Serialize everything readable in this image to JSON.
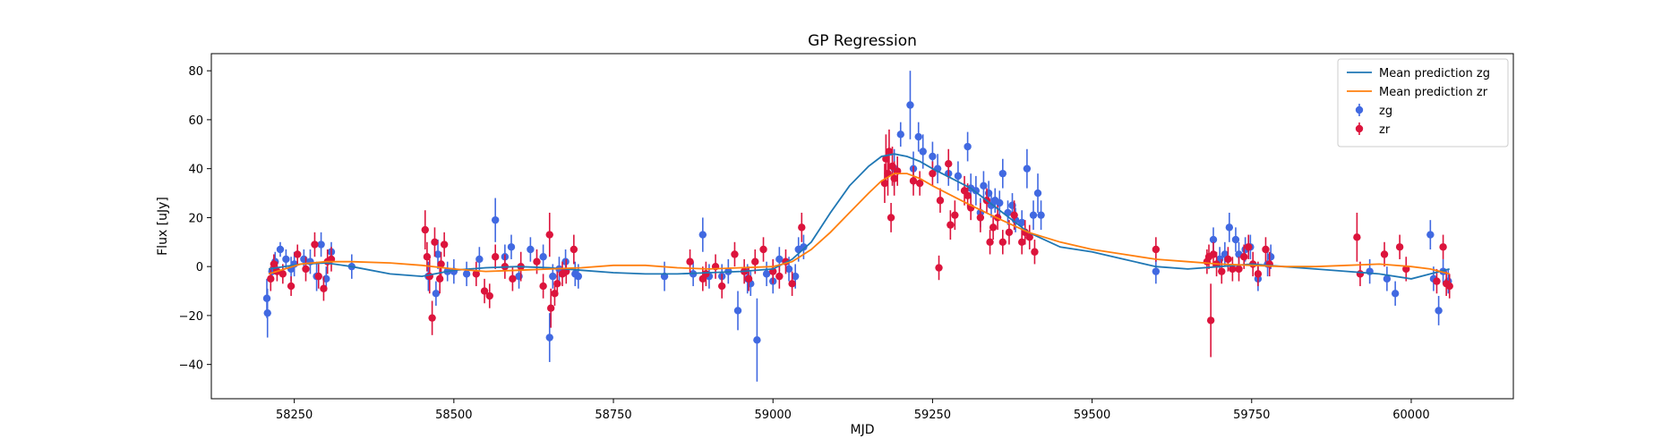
{
  "chart_data": {
    "type": "scatter",
    "title": "GP Regression",
    "xlabel": "MJD",
    "ylabel": "Flux [uJy]",
    "xlim": [
      58120,
      60160
    ],
    "ylim": [
      -54,
      87
    ],
    "x_ticks": [
      58250,
      58500,
      58750,
      59000,
      59250,
      59500,
      59750,
      60000
    ],
    "y_ticks": [
      -40,
      -20,
      0,
      20,
      40,
      60,
      80
    ],
    "grid": false,
    "legend_position": "top-right",
    "colors": {
      "zg": "#4169e1",
      "zr": "#dc143c",
      "mean_zg": "#1f77b4",
      "mean_zr": "#ff7f0e"
    },
    "series": [
      {
        "name": "Mean prediction zg",
        "kind": "line",
        "color": "#1f77b4",
        "x": [
          58210,
          58260,
          58300,
          58340,
          58400,
          58450,
          58500,
          58550,
          58600,
          58650,
          58700,
          58750,
          58800,
          58850,
          58900,
          58950,
          59000,
          59030,
          59060,
          59090,
          59120,
          59150,
          59170,
          59190,
          59210,
          59230,
          59250,
          59280,
          59310,
          59350,
          59400,
          59450,
          59500,
          59550,
          59600,
          59650,
          59700,
          59750,
          59800,
          59850,
          59900,
          59950,
          60000,
          60030,
          60060
        ],
        "y": [
          -1,
          1,
          1.5,
          0,
          -3,
          -4,
          -1.5,
          -0.5,
          0,
          -0.5,
          -1.5,
          -2.5,
          -3,
          -3,
          -2.5,
          -2,
          -1,
          3,
          10,
          22,
          33,
          41,
          45,
          46,
          45,
          43,
          40,
          36,
          32,
          24,
          14,
          8,
          6,
          3,
          0,
          -1,
          0,
          1,
          0,
          -1,
          -2,
          -3,
          -5,
          -3,
          -1
        ]
      },
      {
        "name": "Mean prediction zr",
        "kind": "line",
        "color": "#ff7f0e",
        "x": [
          58210,
          58260,
          58300,
          58340,
          58400,
          58450,
          58500,
          58550,
          58600,
          58650,
          58700,
          58750,
          58800,
          58850,
          58900,
          58950,
          59000,
          59030,
          59060,
          59090,
          59120,
          59150,
          59170,
          59190,
          59210,
          59230,
          59250,
          59280,
          59310,
          59350,
          59400,
          59450,
          59500,
          59550,
          59600,
          59650,
          59700,
          59750,
          59800,
          59850,
          59900,
          59950,
          60000,
          60030,
          60060
        ],
        "y": [
          -3,
          1,
          2,
          2,
          1.5,
          0.5,
          -1,
          -2,
          -1.5,
          -1,
          -0.5,
          0.5,
          0.5,
          -0.5,
          -1,
          -0.5,
          0,
          2,
          7,
          14,
          22,
          30,
          35,
          38,
          38,
          36,
          33,
          29,
          25,
          20,
          14,
          10,
          7,
          5,
          3,
          2,
          1,
          0.5,
          0,
          0,
          0.5,
          1,
          0,
          -1,
          -3
        ]
      },
      {
        "name": "zg",
        "kind": "errorbar",
        "color": "#4169e1",
        "points": [
          [
            58207,
            -13,
            8
          ],
          [
            58208,
            -19,
            10
          ],
          [
            58215,
            -2,
            4
          ],
          [
            58220,
            2,
            4
          ],
          [
            58228,
            7,
            3
          ],
          [
            58237,
            3,
            4
          ],
          [
            58245,
            -1,
            5
          ],
          [
            58250,
            1,
            5
          ],
          [
            58265,
            3,
            4
          ],
          [
            58275,
            2,
            5
          ],
          [
            58285,
            -4,
            6
          ],
          [
            58292,
            9,
            5
          ],
          [
            58300,
            -5,
            5
          ],
          [
            58308,
            6,
            4
          ],
          [
            58340,
            0,
            5
          ],
          [
            58460,
            -4,
            6
          ],
          [
            58472,
            -11,
            5
          ],
          [
            58475,
            5,
            6
          ],
          [
            58490,
            -2,
            4
          ],
          [
            58500,
            -2,
            5
          ],
          [
            58520,
            -3,
            5
          ],
          [
            58540,
            3,
            5
          ],
          [
            58565,
            19,
            9
          ],
          [
            58580,
            4,
            5
          ],
          [
            58590,
            8,
            5
          ],
          [
            58602,
            -4,
            5
          ],
          [
            58620,
            7,
            5
          ],
          [
            58640,
            4,
            5
          ],
          [
            58650,
            -29,
            10
          ],
          [
            58655,
            -4,
            5
          ],
          [
            58665,
            -1,
            5
          ],
          [
            58675,
            2,
            5
          ],
          [
            58690,
            -3,
            5
          ],
          [
            58695,
            -4,
            5
          ],
          [
            58830,
            -4,
            6
          ],
          [
            58875,
            -3,
            5
          ],
          [
            58890,
            13,
            7
          ],
          [
            58900,
            -4,
            5
          ],
          [
            58920,
            -4,
            5
          ],
          [
            58930,
            -2,
            5
          ],
          [
            58945,
            -18,
            8
          ],
          [
            58960,
            -5,
            6
          ],
          [
            58965,
            -7,
            5
          ],
          [
            58975,
            -30,
            17
          ],
          [
            58990,
            -3,
            5
          ],
          [
            59000,
            -6,
            5
          ],
          [
            59010,
            3,
            5
          ],
          [
            59025,
            -1,
            5
          ],
          [
            59035,
            -4,
            5
          ],
          [
            59040,
            7,
            5
          ],
          [
            59048,
            8,
            5
          ],
          [
            59190,
            40,
            8
          ],
          [
            59200,
            54,
            5
          ],
          [
            59215,
            66,
            14
          ],
          [
            59220,
            40,
            7
          ],
          [
            59228,
            53,
            6
          ],
          [
            59235,
            47,
            7
          ],
          [
            59250,
            45,
            6
          ],
          [
            59258,
            40,
            6
          ],
          [
            59275,
            38,
            5
          ],
          [
            59290,
            37,
            6
          ],
          [
            59305,
            49,
            6
          ],
          [
            59310,
            32,
            6
          ],
          [
            59318,
            31,
            6
          ],
          [
            59325,
            22,
            6
          ],
          [
            59330,
            33,
            6
          ],
          [
            59338,
            30,
            5
          ],
          [
            59342,
            25,
            5
          ],
          [
            59348,
            27,
            5
          ],
          [
            59355,
            26,
            5
          ],
          [
            59360,
            38,
            6
          ],
          [
            59368,
            22,
            5
          ],
          [
            59375,
            25,
            5
          ],
          [
            59380,
            19,
            5
          ],
          [
            59390,
            18,
            5
          ],
          [
            59398,
            40,
            8
          ],
          [
            59408,
            21,
            6
          ],
          [
            59415,
            30,
            8
          ],
          [
            59420,
            21,
            6
          ],
          [
            59600,
            -2,
            5
          ],
          [
            59690,
            11,
            5
          ],
          [
            59700,
            3,
            5
          ],
          [
            59708,
            5,
            5
          ],
          [
            59715,
            16,
            6
          ],
          [
            59725,
            11,
            5
          ],
          [
            59730,
            5,
            5
          ],
          [
            59740,
            7,
            5
          ],
          [
            59748,
            8,
            5
          ],
          [
            59760,
            -5,
            5
          ],
          [
            59775,
            1,
            5
          ],
          [
            59780,
            4,
            5
          ],
          [
            59935,
            -2,
            5
          ],
          [
            59962,
            -5,
            5
          ],
          [
            59975,
            -11,
            5
          ],
          [
            60030,
            13,
            6
          ],
          [
            60035,
            -5,
            5
          ],
          [
            60043,
            -18,
            6
          ],
          [
            60050,
            -2,
            5
          ],
          [
            60058,
            -6,
            5
          ]
        ]
      },
      {
        "name": "zr",
        "kind": "errorbar",
        "color": "#dc143c",
        "points": [
          [
            58213,
            -5,
            5
          ],
          [
            58218,
            1,
            4
          ],
          [
            58223,
            -2,
            4
          ],
          [
            58232,
            -3,
            4
          ],
          [
            58245,
            -8,
            4
          ],
          [
            58255,
            5,
            4
          ],
          [
            58268,
            -1,
            5
          ],
          [
            58282,
            9,
            5
          ],
          [
            58288,
            -4,
            5
          ],
          [
            58296,
            -9,
            5
          ],
          [
            58302,
            2,
            5
          ],
          [
            58308,
            3,
            5
          ],
          [
            58455,
            15,
            8
          ],
          [
            58458,
            4,
            6
          ],
          [
            58462,
            -4,
            7
          ],
          [
            58466,
            -21,
            7
          ],
          [
            58470,
            10,
            6
          ],
          [
            58478,
            -5,
            6
          ],
          [
            58480,
            1,
            5
          ],
          [
            58485,
            9,
            5
          ],
          [
            58535,
            -3,
            5
          ],
          [
            58548,
            -10,
            5
          ],
          [
            58556,
            -12,
            5
          ],
          [
            58565,
            4,
            5
          ],
          [
            58580,
            0,
            5
          ],
          [
            58592,
            -5,
            5
          ],
          [
            58605,
            0,
            6
          ],
          [
            58630,
            2,
            5
          ],
          [
            58640,
            -8,
            5
          ],
          [
            58650,
            13,
            9
          ],
          [
            58652,
            -17,
            8
          ],
          [
            58658,
            -11,
            5
          ],
          [
            58662,
            -7,
            5
          ],
          [
            58670,
            -3,
            5
          ],
          [
            58676,
            -2,
            5
          ],
          [
            58688,
            7,
            6
          ],
          [
            58870,
            2,
            5
          ],
          [
            58890,
            -5,
            5
          ],
          [
            58895,
            -3,
            5
          ],
          [
            58910,
            0,
            5
          ],
          [
            58920,
            -8,
            5
          ],
          [
            58940,
            5,
            5
          ],
          [
            58955,
            -2,
            5
          ],
          [
            58962,
            -5,
            5
          ],
          [
            58972,
            2,
            5
          ],
          [
            58985,
            7,
            5
          ],
          [
            59000,
            -2,
            5
          ],
          [
            59010,
            -4,
            5
          ],
          [
            59020,
            2,
            5
          ],
          [
            59030,
            -7,
            5
          ],
          [
            59045,
            16,
            6
          ],
          [
            59175,
            34,
            8
          ],
          [
            59177,
            44,
            10
          ],
          [
            59180,
            38,
            9
          ],
          [
            59182,
            47,
            9
          ],
          [
            59185,
            20,
            6
          ],
          [
            59187,
            41,
            8
          ],
          [
            59190,
            36,
            7
          ],
          [
            59195,
            39,
            6
          ],
          [
            59220,
            35,
            6
          ],
          [
            59230,
            34,
            5
          ],
          [
            59250,
            38,
            5
          ],
          [
            59260,
            -0.5,
            5
          ],
          [
            59262,
            27,
            5
          ],
          [
            59275,
            42,
            6
          ],
          [
            59278,
            17,
            6
          ],
          [
            59285,
            21,
            6
          ],
          [
            59300,
            31,
            6
          ],
          [
            59305,
            29,
            5
          ],
          [
            59310,
            24,
            5
          ],
          [
            59325,
            20,
            6
          ],
          [
            59335,
            27,
            5
          ],
          [
            59340,
            10,
            5
          ],
          [
            59345,
            16,
            5
          ],
          [
            59352,
            20,
            5
          ],
          [
            59360,
            10,
            5
          ],
          [
            59370,
            14,
            5
          ],
          [
            59378,
            21,
            6
          ],
          [
            59390,
            10,
            5
          ],
          [
            59395,
            14,
            5
          ],
          [
            59402,
            12,
            5
          ],
          [
            59410,
            6,
            5
          ],
          [
            59600,
            7,
            5
          ],
          [
            59680,
            2,
            5
          ],
          [
            59683,
            4,
            5
          ],
          [
            59686,
            -22,
            15
          ],
          [
            59690,
            5,
            5
          ],
          [
            59695,
            1,
            5
          ],
          [
            59703,
            -2,
            5
          ],
          [
            59713,
            3,
            5
          ],
          [
            59720,
            -1,
            5
          ],
          [
            59730,
            -1,
            5
          ],
          [
            59738,
            4,
            5
          ],
          [
            59745,
            8,
            5
          ],
          [
            59752,
            1,
            5
          ],
          [
            59760,
            -3,
            5
          ],
          [
            59772,
            7,
            5
          ],
          [
            59778,
            1,
            5
          ],
          [
            59915,
            12,
            10
          ],
          [
            59920,
            -3,
            5
          ],
          [
            59958,
            5,
            5
          ],
          [
            59982,
            8,
            5
          ],
          [
            59992,
            -1,
            5
          ],
          [
            60040,
            -6,
            5
          ],
          [
            60050,
            8,
            5
          ],
          [
            60055,
            -7,
            5
          ],
          [
            60060,
            -8,
            5
          ]
        ]
      }
    ]
  }
}
